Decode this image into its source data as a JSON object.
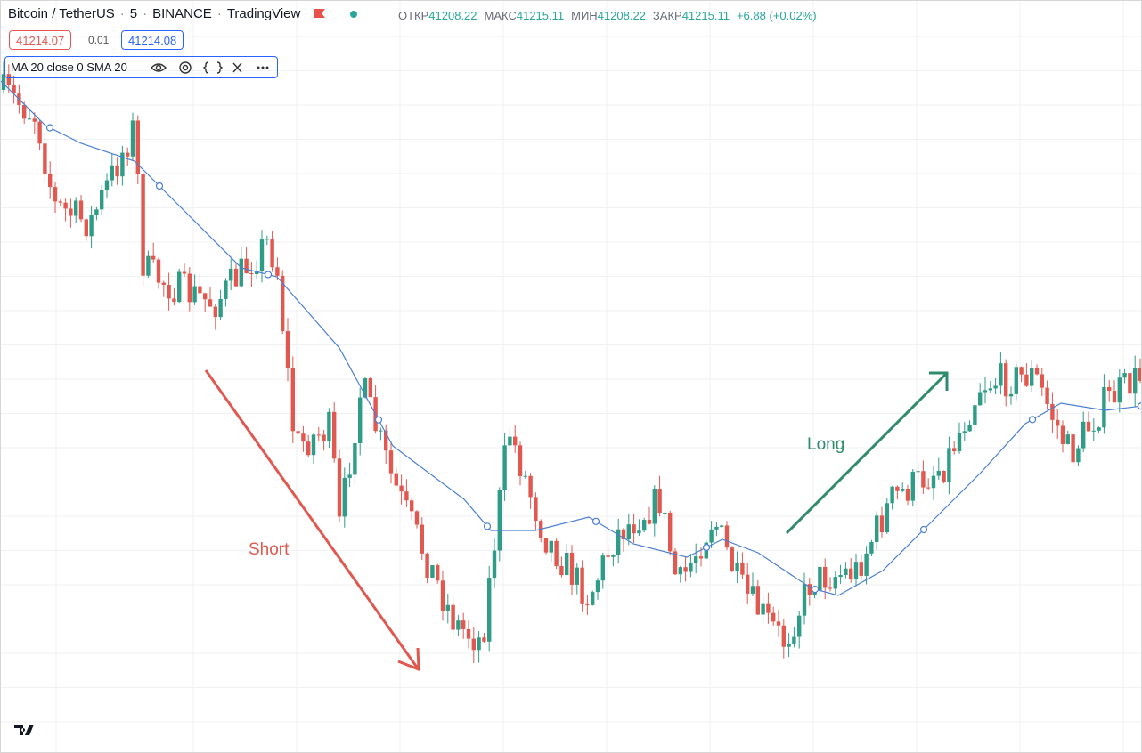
{
  "header": {
    "symbol": "Bitcoin / TetherUS",
    "interval": "5",
    "exchange": "BINANCE",
    "source": "TradingView",
    "ohlc": [
      {
        "label": "ОТКР",
        "value": "41208.22"
      },
      {
        "label": "МАКС",
        "value": "41215.11"
      },
      {
        "label": "МИН",
        "value": "41208.22"
      },
      {
        "label": "ЗАКР",
        "value": "41215.11"
      }
    ],
    "change": "+6.88 (+0.02%)"
  },
  "quote": {
    "bid": "41214.07",
    "spread": "0.01",
    "ask": "41214.08"
  },
  "indicator": {
    "label": "MA 20 close 0 SMA 20"
  },
  "annotations": {
    "short": "Short",
    "long": "Long"
  }
}
